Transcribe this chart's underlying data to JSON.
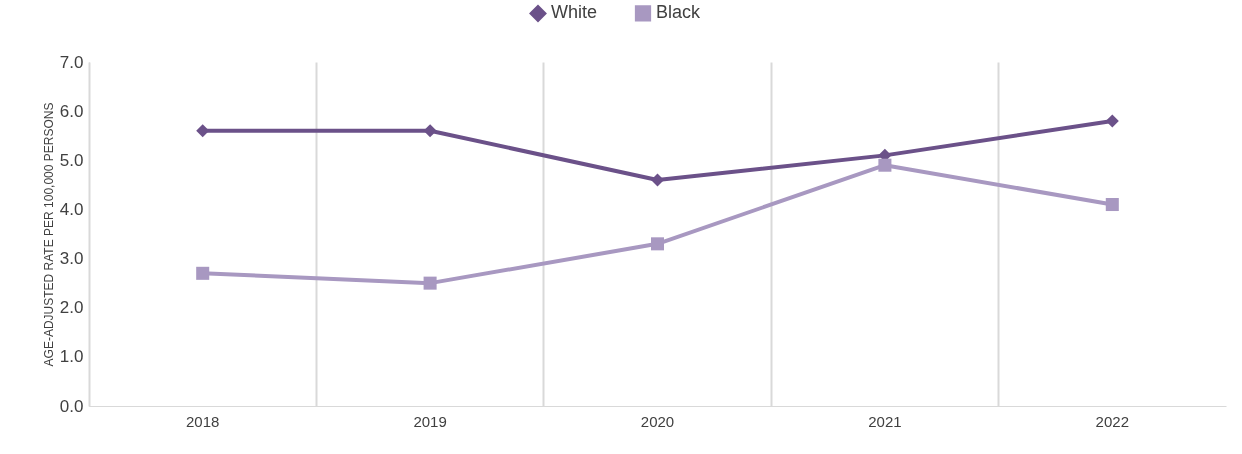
{
  "chart_data": {
    "type": "line",
    "ylabel": "AGE-ADJUSTED RATE PER 100,000 PERSONS",
    "categories": [
      "2018",
      "2019",
      "2020",
      "2021",
      "2022"
    ],
    "series": [
      {
        "name": "White",
        "color": "#6b5189",
        "marker": "diamond",
        "values": [
          5.6,
          5.6,
          4.6,
          5.1,
          5.8
        ]
      },
      {
        "name": "Black",
        "color": "#a898c1",
        "marker": "square",
        "values": [
          2.7,
          2.5,
          3.3,
          4.9,
          4.1
        ]
      }
    ],
    "ylim": [
      0,
      7
    ],
    "yticks": [
      {
        "value": 0,
        "label": "0.0"
      },
      {
        "value": 1,
        "label": "1.0"
      },
      {
        "value": 2,
        "label": "2.0"
      },
      {
        "value": 3,
        "label": "3.0"
      },
      {
        "value": 4,
        "label": "4.0"
      },
      {
        "value": 5,
        "label": "5.0"
      },
      {
        "value": 6,
        "label": "6.0"
      },
      {
        "value": 7,
        "label": "7.0"
      }
    ],
    "grid": "x",
    "legend": "top",
    "line_style": "solid"
  }
}
